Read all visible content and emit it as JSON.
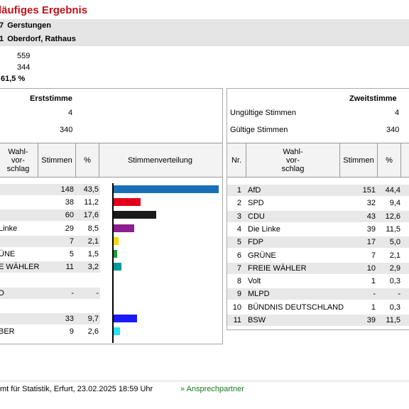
{
  "title": "läufiges Ergebnis",
  "wahlkreis": {
    "num": "7",
    "name": "Gerstungen"
  },
  "bezirk": {
    "num": "1",
    "name": "Oberdorf, Rathaus"
  },
  "stats": {
    "wahlberechtigte": "559",
    "waehler": "344",
    "beteiligung": "61,5 %"
  },
  "erst": {
    "title": "Erststimme",
    "ungueltig": "4",
    "gueltig": "340",
    "headers": {
      "wahl": "Wahl-\nvor-\nschlag",
      "stimmen": "Stimmen",
      "pct": "%",
      "vert": "Stimmenverteilung"
    },
    "rows": [
      {
        "name": "",
        "stimmen": "148",
        "pct": "43,5",
        "value": 43.5,
        "color": "#1a6fb8"
      },
      {
        "name": "",
        "stimmen": "38",
        "pct": "11,2",
        "value": 11.2,
        "color": "#e3001b"
      },
      {
        "name": "",
        "stimmen": "60",
        "pct": "17,6",
        "value": 17.6,
        "color": "#1a1a1a"
      },
      {
        "name": "Linke",
        "stimmen": "29",
        "pct": "8,5",
        "value": 8.5,
        "color": "#8e1d8e"
      },
      {
        "name": "",
        "stimmen": "7",
        "pct": "2,1",
        "value": 2.1,
        "color": "#f5d800"
      },
      {
        "name": "ÜNE",
        "stimmen": "5",
        "pct": "1,5",
        "value": 1.5,
        "color": "#1a9a3a"
      },
      {
        "name": "E WÄHLER",
        "stimmen": "11",
        "pct": "3,2",
        "value": 3.2,
        "color": "#009999"
      },
      {
        "name": "",
        "stimmen": "",
        "pct": "",
        "value": 0,
        "color": "#ffffff"
      },
      {
        "name": "D",
        "stimmen": "-",
        "pct": "-",
        "value": 0,
        "color": "#ffffff"
      },
      {
        "name": "",
        "stimmen": "",
        "pct": "",
        "value": 0,
        "color": "#ffffff"
      },
      {
        "name": "",
        "stimmen": "33",
        "pct": "9,7",
        "value": 9.7,
        "color": "#1a1aff"
      },
      {
        "name": "BER",
        "stimmen": "9",
        "pct": "2,6",
        "value": 2.6,
        "color": "#22e5f0"
      }
    ]
  },
  "zweit": {
    "title": "Zweitstimme",
    "ungueltig_label": "Ungültige Stimmen",
    "ungueltig": "4",
    "gueltig_label": "Gültige Stimmen",
    "gueltig": "340",
    "headers": {
      "nr": "Nr.",
      "wahl": "Wahl-\nvor-\nschlag",
      "stimmen": "Stimmen",
      "pct": "%"
    },
    "rows": [
      {
        "nr": "1",
        "name": "AfD",
        "stimmen": "151",
        "pct": "44,4"
      },
      {
        "nr": "2",
        "name": "SPD",
        "stimmen": "32",
        "pct": "9,4"
      },
      {
        "nr": "3",
        "name": "CDU",
        "stimmen": "43",
        "pct": "12,6"
      },
      {
        "nr": "4",
        "name": "Die Linke",
        "stimmen": "39",
        "pct": "11,5"
      },
      {
        "nr": "5",
        "name": "FDP",
        "stimmen": "17",
        "pct": "5,0"
      },
      {
        "nr": "6",
        "name": "GRÜNE",
        "stimmen": "7",
        "pct": "2,1"
      },
      {
        "nr": "7",
        "name": "FREIE WÄHLER",
        "stimmen": "10",
        "pct": "2,9"
      },
      {
        "nr": "8",
        "name": "Volt",
        "stimmen": "1",
        "pct": "0,3"
      },
      {
        "nr": "9",
        "name": "MLPD",
        "stimmen": "-",
        "pct": "-"
      },
      {
        "nr": "10",
        "name": "BÜNDNIS DEUTSCHLAND",
        "stimmen": "1",
        "pct": "0,3"
      },
      {
        "nr": "11",
        "name": "BSW",
        "stimmen": "39",
        "pct": "11,5"
      }
    ]
  },
  "footer": {
    "source": "mt für Statistik, Erfurt, 23.02.2025 18:59 Uhr",
    "link": "» Ansprechpartner"
  }
}
